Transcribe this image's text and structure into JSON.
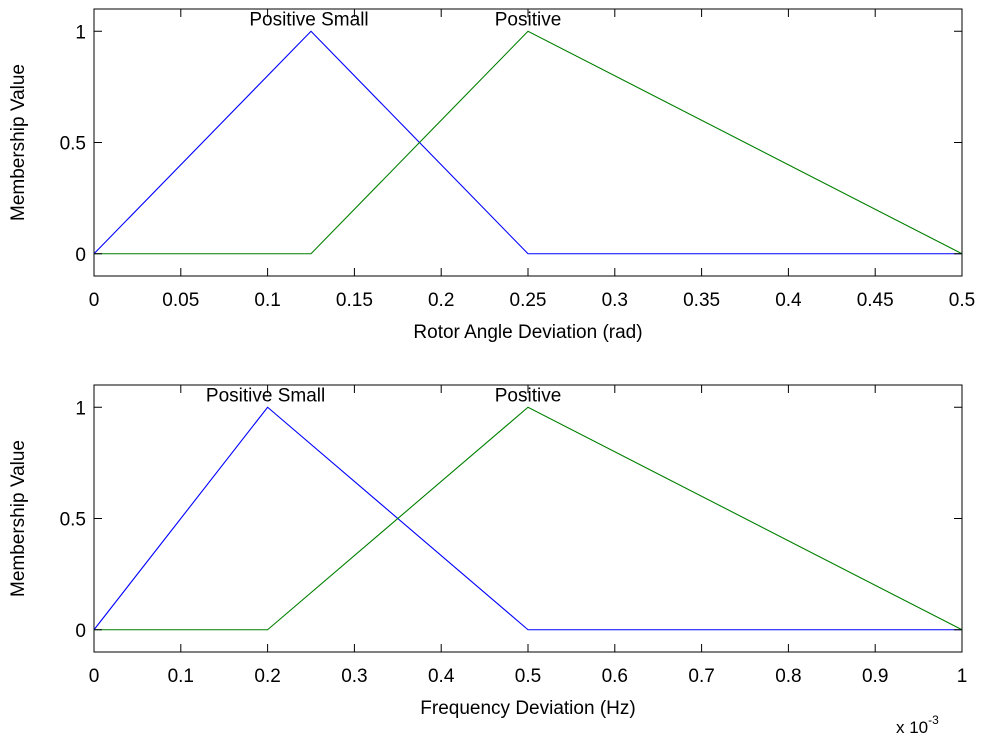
{
  "chart_data": [
    {
      "type": "line",
      "title": "",
      "xlabel": "Rotor Angle Deviation (rad)",
      "ylabel": "Membership Value",
      "xlim": [
        0,
        0.5
      ],
      "ylim": [
        -0.1,
        1.1
      ],
      "xticks": [
        0,
        0.05,
        0.1,
        0.15,
        0.2,
        0.25,
        0.3,
        0.35,
        0.4,
        0.45,
        0.5
      ],
      "xtick_labels": [
        "0",
        "0.05",
        "0.1",
        "0.15",
        "0.2",
        "0.25",
        "0.3",
        "0.35",
        "0.4",
        "0.45",
        "0.5"
      ],
      "yticks": [
        0,
        0.5,
        1
      ],
      "ytick_labels": [
        "0",
        "0.5",
        "1"
      ],
      "x_exponent": "",
      "grid": false,
      "series": [
        {
          "name": "Positive Small",
          "color": "#0000ff",
          "x": [
            0,
            0.125,
            0.25,
            0.5
          ],
          "y": [
            0,
            1,
            0,
            0
          ]
        },
        {
          "name": "Positive",
          "color": "#008000",
          "x": [
            0,
            0.125,
            0.25,
            0.5
          ],
          "y": [
            0,
            0,
            1,
            0
          ]
        }
      ]
    },
    {
      "type": "line",
      "title": "",
      "xlabel": "Frequency Deviation (Hz)",
      "ylabel": "Membership Value",
      "xlim": [
        0,
        1
      ],
      "ylim": [
        -0.1,
        1.1
      ],
      "xticks": [
        0,
        0.1,
        0.2,
        0.3,
        0.4,
        0.5,
        0.6,
        0.7,
        0.8,
        0.9,
        1
      ],
      "xtick_labels": [
        "0",
        "0.1",
        "0.2",
        "0.3",
        "0.4",
        "0.5",
        "0.6",
        "0.7",
        "0.8",
        "0.9",
        "1"
      ],
      "yticks": [
        0,
        0.5,
        1
      ],
      "ytick_labels": [
        "0",
        "0.5",
        "1"
      ],
      "x_exponent_base": "x 10",
      "x_exponent": "-3",
      "grid": false,
      "series": [
        {
          "name": "Positive Small",
          "color": "#0000ff",
          "x": [
            0,
            0.2,
            0.5,
            1
          ],
          "y": [
            0,
            1,
            0,
            0
          ]
        },
        {
          "name": "Positive",
          "color": "#008000",
          "x": [
            0,
            0.2,
            0.5,
            1
          ],
          "y": [
            0,
            0,
            1,
            0
          ]
        }
      ]
    }
  ]
}
